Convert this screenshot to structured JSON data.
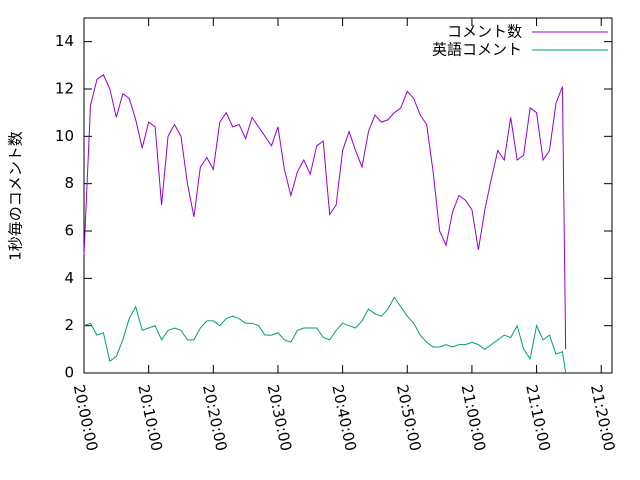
{
  "chart_data": {
    "type": "line",
    "y_label": "1秒毎のコメント数",
    "x": [
      "20:00:00",
      "20:01:00",
      "20:02:00",
      "20:03:00",
      "20:04:00",
      "20:05:00",
      "20:06:00",
      "20:07:00",
      "20:08:00",
      "20:09:00",
      "20:10:00",
      "20:11:00",
      "20:12:00",
      "20:13:00",
      "20:14:00",
      "20:15:00",
      "20:16:00",
      "20:17:00",
      "20:18:00",
      "20:19:00",
      "20:20:00",
      "20:21:00",
      "20:22:00",
      "20:23:00",
      "20:24:00",
      "20:25:00",
      "20:26:00",
      "20:27:00",
      "20:28:00",
      "20:29:00",
      "20:30:00",
      "20:31:00",
      "20:32:00",
      "20:33:00",
      "20:34:00",
      "20:35:00",
      "20:36:00",
      "20:37:00",
      "20:38:00",
      "20:39:00",
      "20:40:00",
      "20:41:00",
      "20:42:00",
      "20:43:00",
      "20:44:00",
      "20:45:00",
      "20:46:00",
      "20:47:00",
      "20:48:00",
      "20:49:00",
      "20:50:00",
      "20:51:00",
      "20:52:00",
      "20:53:00",
      "20:54:00",
      "20:55:00",
      "20:56:00",
      "20:57:00",
      "20:58:00",
      "20:59:00",
      "21:00:00",
      "21:01:00",
      "21:02:00",
      "21:03:00",
      "21:04:00",
      "21:05:00",
      "21:06:00",
      "21:07:00",
      "21:08:00",
      "21:09:00",
      "21:10:00",
      "21:11:00",
      "21:12:00",
      "21:13:00",
      "21:14:00",
      "21:14:30"
    ],
    "series": [
      {
        "name": "コメント数",
        "color": "#9400d3",
        "values": [
          5.0,
          11.3,
          12.4,
          12.6,
          12.0,
          10.8,
          11.8,
          11.6,
          10.7,
          9.5,
          10.6,
          10.4,
          7.1,
          10.0,
          10.5,
          10.0,
          8.0,
          6.6,
          8.7,
          9.1,
          8.6,
          10.6,
          11.0,
          10.4,
          10.5,
          9.9,
          10.8,
          10.4,
          10.0,
          9.6,
          10.4,
          8.6,
          7.5,
          8.5,
          9.0,
          8.4,
          9.6,
          9.8,
          6.7,
          7.1,
          9.4,
          10.2,
          9.4,
          8.7,
          10.2,
          10.9,
          10.6,
          10.7,
          11.0,
          11.2,
          11.9,
          11.6,
          10.9,
          10.5,
          8.5,
          6.0,
          5.4,
          6.8,
          7.5,
          7.3,
          6.9,
          5.2,
          6.9,
          8.2,
          9.4,
          9.0,
          10.8,
          9.0,
          9.2,
          11.2,
          11.0,
          9.0,
          9.4,
          11.4,
          12.1,
          1.0
        ]
      },
      {
        "name": "英語コメント",
        "color": "#009e73",
        "values": [
          2.0,
          2.1,
          1.6,
          1.7,
          0.5,
          0.7,
          1.4,
          2.3,
          2.8,
          1.8,
          1.9,
          2.0,
          1.4,
          1.8,
          1.9,
          1.8,
          1.4,
          1.4,
          1.9,
          2.2,
          2.2,
          2.0,
          2.3,
          2.4,
          2.3,
          2.1,
          2.1,
          2.0,
          1.6,
          1.6,
          1.7,
          1.4,
          1.3,
          1.8,
          1.9,
          1.9,
          1.9,
          1.5,
          1.4,
          1.8,
          2.1,
          2.0,
          1.9,
          2.2,
          2.7,
          2.5,
          2.4,
          2.7,
          3.2,
          2.8,
          2.4,
          2.1,
          1.6,
          1.3,
          1.1,
          1.1,
          1.2,
          1.1,
          1.2,
          1.2,
          1.3,
          1.2,
          1.0,
          1.2,
          1.4,
          1.6,
          1.5,
          2.0,
          1.0,
          0.6,
          2.0,
          1.4,
          1.6,
          0.8,
          0.9,
          0.0
        ]
      }
    ],
    "xlim": [
      "20:00:00",
      "21:21:40"
    ],
    "xticks": [
      "20:00:00",
      "20:10:00",
      "20:20:00",
      "20:30:00",
      "20:40:00",
      "20:50:00",
      "21:00:00",
      "21:10:00",
      "21:20:00"
    ],
    "ylim": [
      0,
      15
    ],
    "yticks": [
      0,
      2,
      4,
      6,
      8,
      10,
      12,
      14
    ],
    "grid": false,
    "legend": "top-right"
  }
}
